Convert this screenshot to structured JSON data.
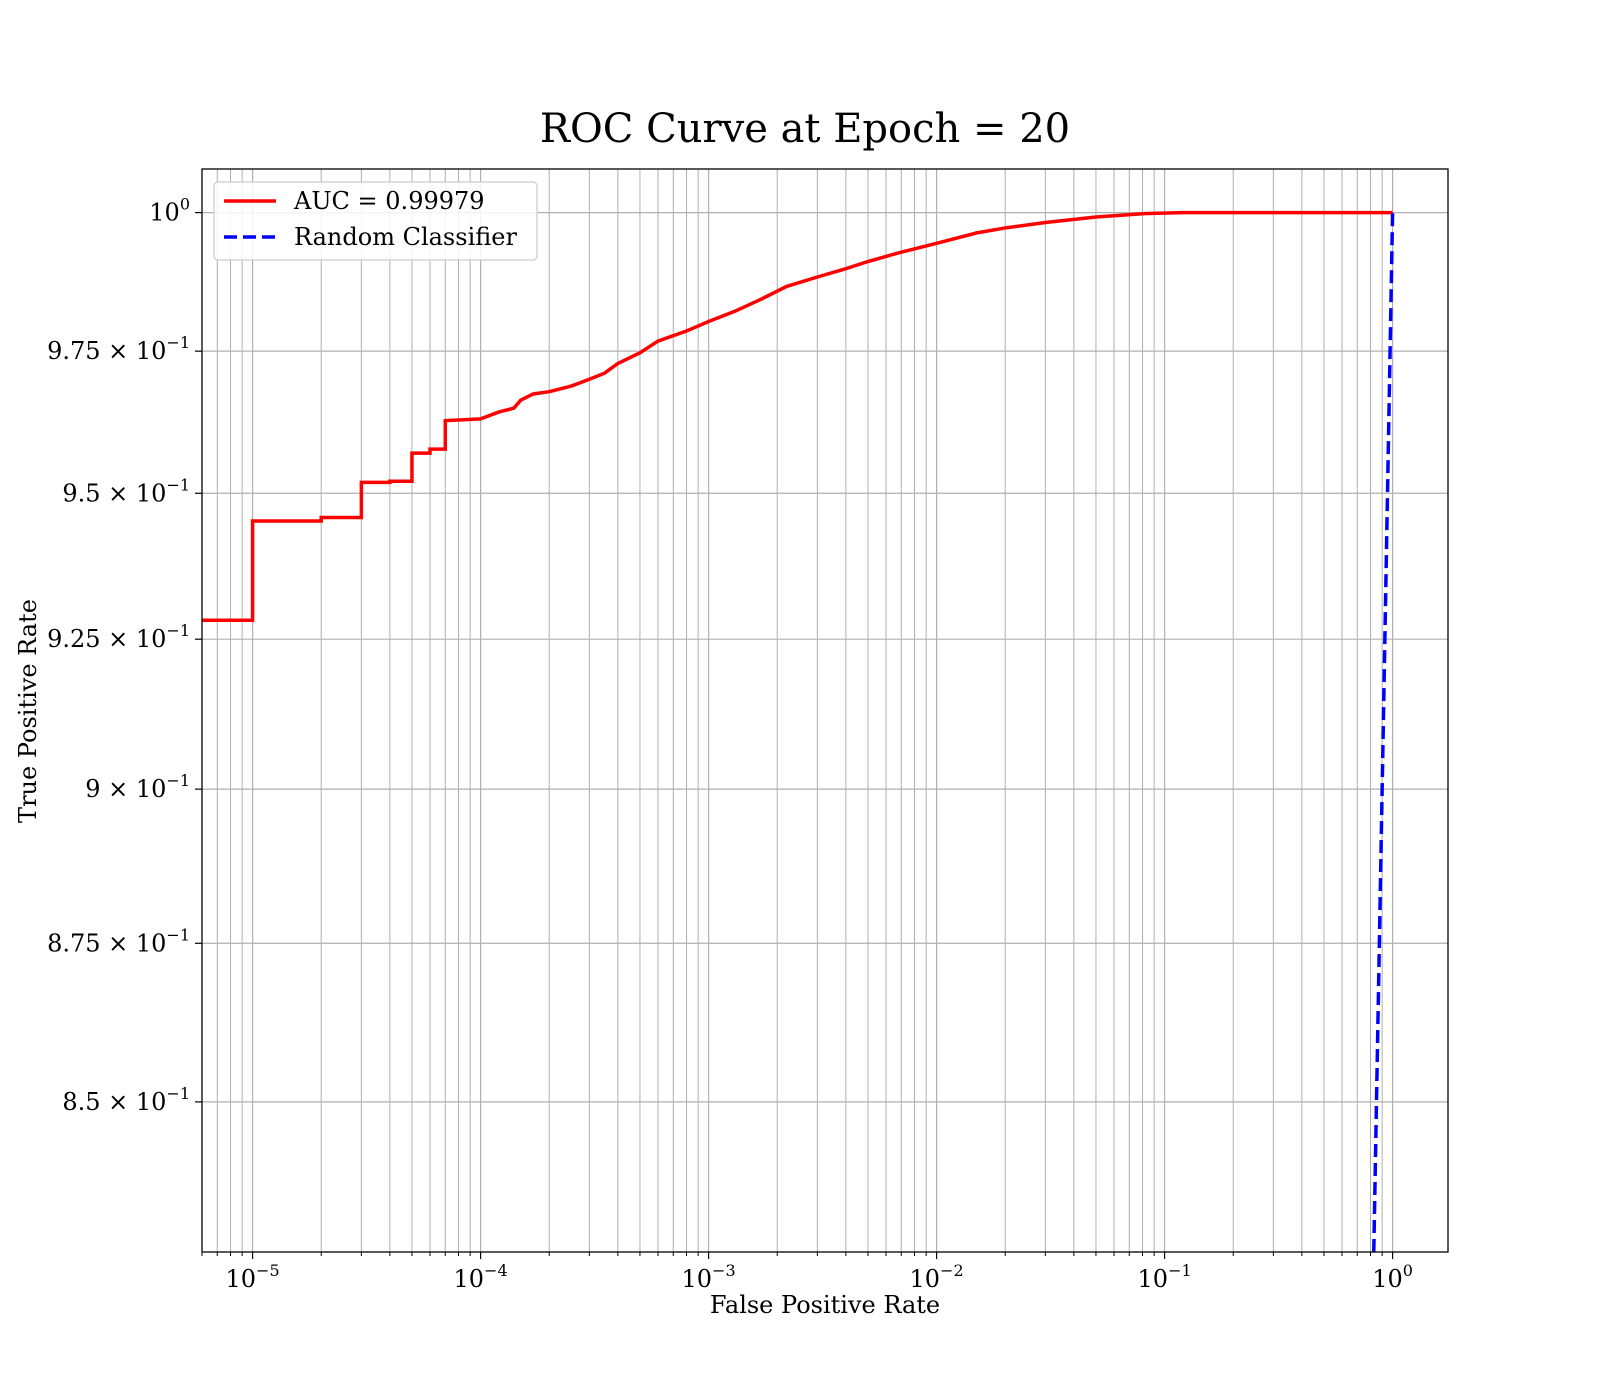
{
  "chart_data": {
    "type": "line",
    "title": "ROC Curve at Epoch = 20",
    "xlabel": "False Positive Rate",
    "ylabel": "True Positive Rate",
    "xscale": "log",
    "yscale": "log",
    "xlim": [
      6e-06,
      1.75
    ],
    "ylim": [
      0.827,
      1.008
    ],
    "grid": "both (major and minor)",
    "legend_position": "upper left",
    "x_ticks": [
      {
        "value": 1e-05,
        "base": "10",
        "exp": "−5"
      },
      {
        "value": 0.0001,
        "base": "10",
        "exp": "−4"
      },
      {
        "value": 0.001,
        "base": "10",
        "exp": "−3"
      },
      {
        "value": 0.01,
        "base": "10",
        "exp": "−2"
      },
      {
        "value": 0.1,
        "base": "10",
        "exp": "−1"
      },
      {
        "value": 1,
        "base": "10",
        "exp": "0"
      }
    ],
    "y_ticks": [
      {
        "value": 1.0,
        "base": "10",
        "exp": "0"
      },
      {
        "value": 0.975,
        "base": "9.75 × 10",
        "exp": "−1"
      },
      {
        "value": 0.95,
        "base": "9.5 × 10",
        "exp": "−1"
      },
      {
        "value": 0.925,
        "base": "9.25 × 10",
        "exp": "−1"
      },
      {
        "value": 0.9,
        "base": "9 × 10",
        "exp": "−1"
      },
      {
        "value": 0.875,
        "base": "8.75 × 10",
        "exp": "−1"
      },
      {
        "value": 0.85,
        "base": "8.5 × 10",
        "exp": "−1"
      }
    ],
    "series": [
      {
        "name": "AUC = 0.99979",
        "color": "#ff0000",
        "style": "solid",
        "points": [
          [
            6e-06,
            0.9282
          ],
          [
            1e-05,
            0.9282
          ],
          [
            1e-05,
            0.9452
          ],
          [
            2e-05,
            0.9452
          ],
          [
            2e-05,
            0.9458
          ],
          [
            3e-05,
            0.9458
          ],
          [
            3e-05,
            0.9519
          ],
          [
            4e-05,
            0.9519
          ],
          [
            4e-05,
            0.9521
          ],
          [
            5e-05,
            0.9521
          ],
          [
            5e-05,
            0.957
          ],
          [
            6e-05,
            0.957
          ],
          [
            6e-05,
            0.9577
          ],
          [
            7e-05,
            0.9577
          ],
          [
            7e-05,
            0.9627
          ],
          [
            0.0001,
            0.963
          ],
          [
            0.00012,
            0.9642
          ],
          [
            0.00014,
            0.9649
          ],
          [
            0.00015,
            0.9663
          ],
          [
            0.00017,
            0.9674
          ],
          [
            0.0002,
            0.9678
          ],
          [
            0.00025,
            0.9688
          ],
          [
            0.0003,
            0.97
          ],
          [
            0.00035,
            0.9711
          ],
          [
            0.0004,
            0.9728
          ],
          [
            0.0005,
            0.9747
          ],
          [
            0.0006,
            0.9768
          ],
          [
            0.0008,
            0.9786
          ],
          [
            0.001,
            0.9803
          ],
          [
            0.0013,
            0.9821
          ],
          [
            0.0017,
            0.9843
          ],
          [
            0.0022,
            0.9866
          ],
          [
            0.003,
            0.9883
          ],
          [
            0.004,
            0.9898
          ],
          [
            0.005,
            0.9911
          ],
          [
            0.007,
            0.9928
          ],
          [
            0.01,
            0.9944
          ],
          [
            0.015,
            0.9963
          ],
          [
            0.02,
            0.9972
          ],
          [
            0.03,
            0.9982
          ],
          [
            0.05,
            0.9992
          ],
          [
            0.08,
            0.9998
          ],
          [
            0.12,
            1.0
          ],
          [
            1.0,
            1.0
          ]
        ]
      },
      {
        "name": "Random Classifier",
        "color": "#0000ff",
        "style": "dashed",
        "points": [
          [
            0.827,
            0.827
          ],
          [
            0.85,
            0.85
          ],
          [
            0.875,
            0.875
          ],
          [
            0.9,
            0.9
          ],
          [
            0.925,
            0.925
          ],
          [
            0.95,
            0.95
          ],
          [
            0.975,
            0.975
          ],
          [
            1.0,
            1.0
          ]
        ]
      }
    ]
  }
}
